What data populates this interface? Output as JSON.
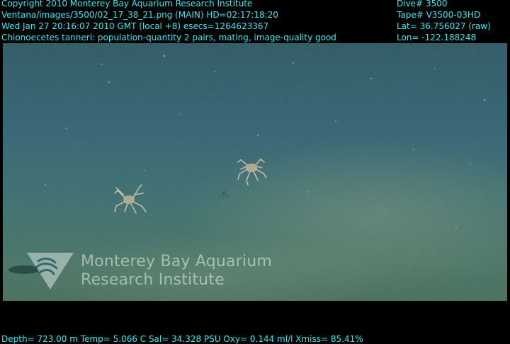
{
  "header_left": {
    "line1": "Copyright 2010 Monterey Bay Aquarium Research Institute",
    "line2": "Ventana/images/3500/02_17_38_21.png (MAIN)  HD=02:17:18:20",
    "line3": "Wed Jan 27 20:16:07 2010 GMT (local +8)  esecs=1264623367",
    "line4": "Chionoecetes tanneri: population-quantity 2 pairs, mating, image-quality good"
  },
  "header_right": {
    "line1": "Dive# 3500",
    "line2": "Tape# V3500-03HD",
    "line3": "Lat= 36.756027 (raw)",
    "line4": "Lon= -122.188248"
  },
  "footer": {
    "line": "Depth= 723.00 m  Temp= 5.066 C  Sal= 34.328 PSU  Oxy= 0.144 ml/l  Xmiss= 85.41%"
  },
  "watermark": {
    "line1": "Monterey Bay Aquarium",
    "line2": "Research Institute"
  },
  "colors": {
    "overlay_text": "#3ee6f0",
    "background": "#000000"
  }
}
